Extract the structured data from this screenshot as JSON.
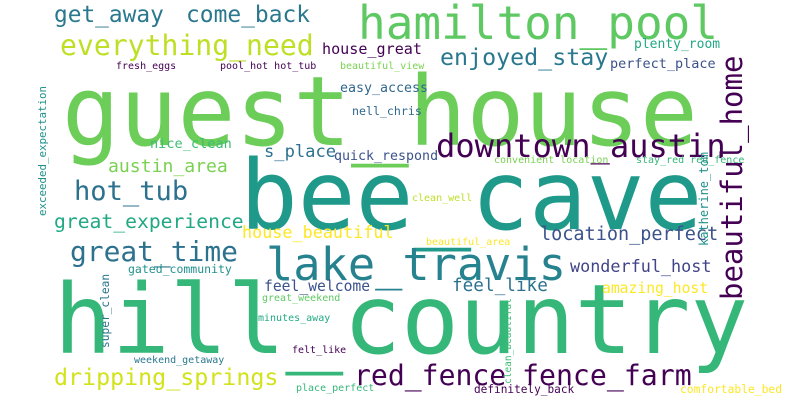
{
  "words": [
    {
      "text": "guest_house",
      "color": "#6ccd59"
    },
    {
      "text": "bee_cave",
      "color": "#1f9a8a"
    },
    {
      "text": "hill_country",
      "color": "#35b779"
    },
    {
      "text": "hamilton_pool",
      "color": "#5ec962"
    },
    {
      "text": "lake_travis",
      "color": "#26828e"
    },
    {
      "text": "downtown_austin",
      "color": "#440154"
    },
    {
      "text": "red_fence",
      "color": "#440154"
    },
    {
      "text": "fence_farm",
      "color": "#440154"
    },
    {
      "text": "beautiful_home",
      "color": "#440154"
    },
    {
      "text": "come_back",
      "color": "#2a788e"
    },
    {
      "text": "everything_need",
      "color": "#bddf26"
    },
    {
      "text": "get_away",
      "color": "#2a788e"
    },
    {
      "text": "enjoyed_stay",
      "color": "#2a788e"
    },
    {
      "text": "hot_tub",
      "color": "#2c728e"
    },
    {
      "text": "great_time",
      "color": "#2c728e"
    },
    {
      "text": "dripping_springs",
      "color": "#d2e21b"
    },
    {
      "text": "nice_clean",
      "color": "#3dbc74"
    },
    {
      "text": "austin_area",
      "color": "#7ad151"
    },
    {
      "text": "great_experience",
      "color": "#22a884"
    },
    {
      "text": "location_perfect",
      "color": "#3b528b"
    },
    {
      "text": "wonderful_host",
      "color": "#414487"
    },
    {
      "text": "feel_like",
      "color": "#2c728e"
    },
    {
      "text": "s_place",
      "color": "#2c728e"
    },
    {
      "text": "quick_respond",
      "color": "#3b528b"
    },
    {
      "text": "house_beautiful",
      "color": "#fde725"
    },
    {
      "text": "feel_welcome",
      "color": "#3b528b"
    },
    {
      "text": "amazing_host",
      "color": "#fde725"
    },
    {
      "text": "plenty_room",
      "color": "#22a884"
    },
    {
      "text": "perfect_place",
      "color": "#3b528b"
    },
    {
      "text": "house_great",
      "color": "#440154"
    },
    {
      "text": "easy_access",
      "color": "#31688e"
    },
    {
      "text": "nell_chris",
      "color": "#31688e"
    },
    {
      "text": "fresh_eggs",
      "color": "#440154"
    },
    {
      "text": "pool_hot hot_tub",
      "color": "#440154"
    },
    {
      "text": "beautiful_view",
      "color": "#7ad151"
    },
    {
      "text": "convenient location",
      "color": "#7ad151"
    },
    {
      "text": "stay_red red_fence",
      "color": "#35b779"
    },
    {
      "text": "katherine_tom",
      "color": "#21918c"
    },
    {
      "text": "exceeded_expectation",
      "color": "#21918c"
    },
    {
      "text": "clean_well",
      "color": "#bddf26"
    },
    {
      "text": "beautiful_area",
      "color": "#fde725"
    },
    {
      "text": "gated_community",
      "color": "#21918c"
    },
    {
      "text": "super_clean",
      "color": "#2a788e"
    },
    {
      "text": "great_weekend",
      "color": "#5ec962"
    },
    {
      "text": "minutes_away",
      "color": "#22a884"
    },
    {
      "text": "weekend_getaway",
      "color": "#2a788e"
    },
    {
      "text": "felt_like",
      "color": "#440154"
    },
    {
      "text": "clean_beautiful",
      "color": "#3dbc74"
    },
    {
      "text": "place_perfect",
      "color": "#35b779"
    },
    {
      "text": "definitely_back",
      "color": "#440154"
    },
    {
      "text": "comfortable_bed",
      "color": "#fde725"
    }
  ]
}
